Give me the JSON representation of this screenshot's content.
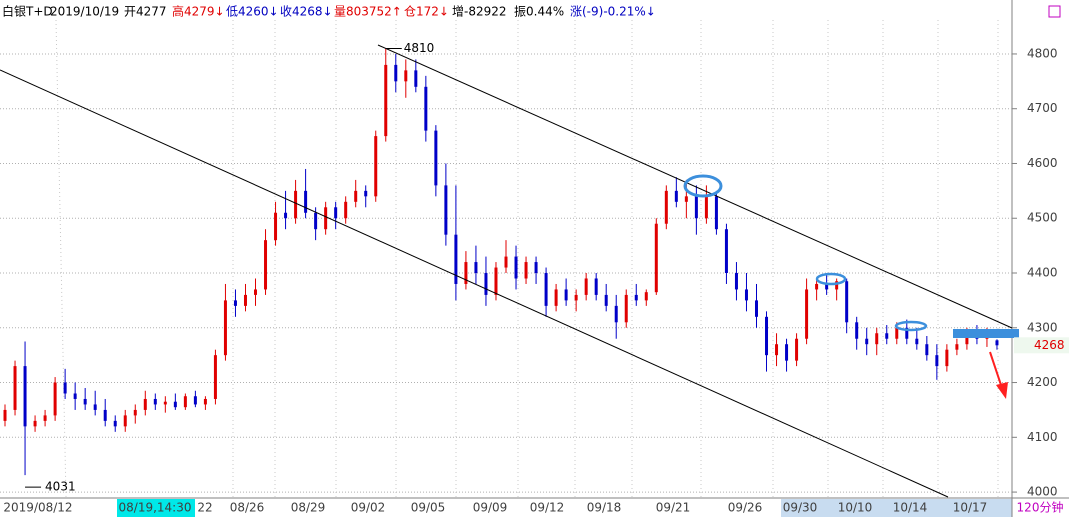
{
  "header": {
    "fields": [
      {
        "text": "白银T+D",
        "color": "#000000"
      },
      {
        "text": "2019/10/19",
        "color": "#000000"
      },
      {
        "text": "开4277",
        "color": "#000000"
      },
      {
        "text": "高4279↓",
        "color": "#e00000"
      },
      {
        "text": "低4260↓",
        "color": "#0000c0"
      },
      {
        "text": "收4268↓",
        "color": "#0000c0"
      },
      {
        "text": "量803752↑",
        "color": "#e00000"
      },
      {
        "text": "仓172↓",
        "color": "#e00000"
      },
      {
        "text": "增-82922",
        "color": "#000000"
      },
      {
        "text": "振0.44%",
        "color": "#000000"
      },
      {
        "text": "涨(-9)-0.21%↓",
        "color": "#0000c0"
      }
    ]
  },
  "chart_data": {
    "type": "candlestick",
    "up_color": "#e00000",
    "down_color": "#0000c8",
    "ylim": [
      3991,
      4862
    ],
    "yticks": [
      4000,
      4100,
      4200,
      4300,
      4400,
      4500,
      4600,
      4700,
      4800
    ],
    "grid": true,
    "x_labels": [
      "2019/08/12",
      "08/19,14:30",
      "22",
      "08/26",
      "08/29",
      "09/02",
      "09/05",
      "09/09",
      "09/12",
      "09/18",
      "09/21",
      "09/26",
      "09/30",
      "10/10",
      "10/14",
      "10/17"
    ],
    "period": "120分钟",
    "high_mark": 4810,
    "low_mark": 4031,
    "last_price": 4268,
    "ohlc": [
      [
        4130,
        4160,
        4120,
        4150
      ],
      [
        4150,
        4240,
        4140,
        4230
      ],
      [
        4230,
        4275,
        4031,
        4120
      ],
      [
        4120,
        4140,
        4110,
        4130
      ],
      [
        4130,
        4150,
        4120,
        4140
      ],
      [
        4140,
        4210,
        4130,
        4200
      ],
      [
        4200,
        4225,
        4170,
        4180
      ],
      [
        4180,
        4200,
        4150,
        4170
      ],
      [
        4170,
        4190,
        4150,
        4160
      ],
      [
        4160,
        4185,
        4140,
        4150
      ],
      [
        4150,
        4170,
        4120,
        4130
      ],
      [
        4130,
        4140,
        4110,
        4120
      ],
      [
        4120,
        4150,
        4110,
        4140
      ],
      [
        4140,
        4160,
        4125,
        4150
      ],
      [
        4150,
        4185,
        4140,
        4170
      ],
      [
        4170,
        4180,
        4150,
        4160
      ],
      [
        4160,
        4175,
        4145,
        4165
      ],
      [
        4165,
        4180,
        4150,
        4155
      ],
      [
        4155,
        4180,
        4150,
        4175
      ],
      [
        4175,
        4185,
        4155,
        4160
      ],
      [
        4160,
        4175,
        4150,
        4170
      ],
      [
        4170,
        4260,
        4160,
        4250
      ],
      [
        4250,
        4380,
        4240,
        4350
      ],
      [
        4350,
        4370,
        4320,
        4340
      ],
      [
        4340,
        4380,
        4330,
        4360
      ],
      [
        4360,
        4390,
        4340,
        4370
      ],
      [
        4370,
        4480,
        4360,
        4460
      ],
      [
        4460,
        4530,
        4450,
        4510
      ],
      [
        4510,
        4550,
        4480,
        4500
      ],
      [
        4500,
        4570,
        4490,
        4550
      ],
      [
        4550,
        4590,
        4500,
        4510
      ],
      [
        4510,
        4520,
        4460,
        4480
      ],
      [
        4480,
        4530,
        4470,
        4520
      ],
      [
        4520,
        4530,
        4480,
        4500
      ],
      [
        4500,
        4540,
        4490,
        4530
      ],
      [
        4530,
        4570,
        4520,
        4550
      ],
      [
        4550,
        4560,
        4520,
        4540
      ],
      [
        4540,
        4660,
        4530,
        4650
      ],
      [
        4650,
        4810,
        4640,
        4780
      ],
      [
        4780,
        4800,
        4730,
        4750
      ],
      [
        4750,
        4790,
        4720,
        4770
      ],
      [
        4770,
        4790,
        4730,
        4740
      ],
      [
        4740,
        4760,
        4640,
        4660
      ],
      [
        4660,
        4670,
        4540,
        4560
      ],
      [
        4560,
        4600,
        4450,
        4470
      ],
      [
        4470,
        4560,
        4350,
        4380
      ],
      [
        4380,
        4440,
        4370,
        4420
      ],
      [
        4420,
        4450,
        4380,
        4400
      ],
      [
        4400,
        4430,
        4340,
        4360
      ],
      [
        4360,
        4420,
        4350,
        4410
      ],
      [
        4410,
        4460,
        4400,
        4430
      ],
      [
        4430,
        4450,
        4370,
        4390
      ],
      [
        4390,
        4430,
        4380,
        4420
      ],
      [
        4420,
        4430,
        4380,
        4400
      ],
      [
        4400,
        4410,
        4320,
        4340
      ],
      [
        4340,
        4380,
        4330,
        4370
      ],
      [
        4370,
        4390,
        4340,
        4350
      ],
      [
        4350,
        4370,
        4330,
        4360
      ],
      [
        4360,
        4400,
        4350,
        4390
      ],
      [
        4390,
        4400,
        4350,
        4360
      ],
      [
        4360,
        4380,
        4330,
        4340
      ],
      [
        4340,
        4360,
        4280,
        4310
      ],
      [
        4310,
        4370,
        4300,
        4360
      ],
      [
        4360,
        4380,
        4340,
        4350
      ],
      [
        4350,
        4370,
        4340,
        4365
      ],
      [
        4365,
        4500,
        4360,
        4490
      ],
      [
        4490,
        4560,
        4480,
        4550
      ],
      [
        4550,
        4575,
        4520,
        4530
      ],
      [
        4530,
        4570,
        4500,
        4540
      ],
      [
        4540,
        4560,
        4470,
        4500
      ],
      [
        4500,
        4560,
        4490,
        4540
      ],
      [
        4540,
        4550,
        4470,
        4480
      ],
      [
        4480,
        4490,
        4380,
        4400
      ],
      [
        4400,
        4420,
        4350,
        4370
      ],
      [
        4370,
        4400,
        4330,
        4350
      ],
      [
        4350,
        4380,
        4300,
        4320
      ],
      [
        4320,
        4330,
        4220,
        4250
      ],
      [
        4250,
        4290,
        4230,
        4270
      ],
      [
        4270,
        4280,
        4220,
        4240
      ],
      [
        4240,
        4290,
        4230,
        4280
      ],
      [
        4280,
        4390,
        4270,
        4370
      ],
      [
        4370,
        4390,
        4350,
        4380
      ],
      [
        4380,
        4400,
        4360,
        4370
      ],
      [
        4370,
        4390,
        4350,
        4385
      ],
      [
        4385,
        4390,
        4290,
        4310
      ],
      [
        4310,
        4320,
        4260,
        4280
      ],
      [
        4280,
        4300,
        4250,
        4270
      ],
      [
        4270,
        4300,
        4250,
        4290
      ],
      [
        4290,
        4305,
        4270,
        4280
      ],
      [
        4280,
        4310,
        4270,
        4300
      ],
      [
        4300,
        4315,
        4270,
        4280
      ],
      [
        4280,
        4300,
        4260,
        4270
      ],
      [
        4270,
        4285,
        4240,
        4250
      ],
      [
        4250,
        4270,
        4205,
        4230
      ],
      [
        4230,
        4270,
        4220,
        4260
      ],
      [
        4260,
        4280,
        4250,
        4270
      ],
      [
        4270,
        4300,
        4260,
        4290
      ],
      [
        4290,
        4305,
        4270,
        4280
      ],
      [
        4280,
        4300,
        4265,
        4285
      ],
      [
        4277,
        4279,
        4260,
        4268
      ]
    ]
  }
}
